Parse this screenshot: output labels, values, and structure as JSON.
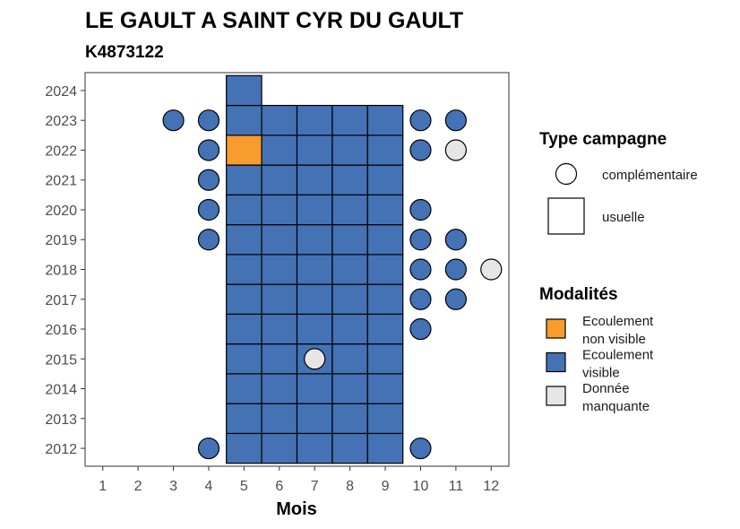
{
  "chart_data": {
    "type": "heatmap",
    "title": "LE GAULT A SAINT CYR DU GAULT",
    "subtitle": "K4873122",
    "xlabel": "Mois",
    "ylabel": "",
    "x_ticks": [
      "1",
      "2",
      "3",
      "4",
      "5",
      "6",
      "7",
      "8",
      "9",
      "10",
      "11",
      "12"
    ],
    "y_ticks": [
      "2012",
      "2013",
      "2014",
      "2015",
      "2016",
      "2017",
      "2018",
      "2019",
      "2020",
      "2021",
      "2022",
      "2023",
      "2024"
    ],
    "xlim": [
      0.5,
      12.5
    ],
    "ylim": [
      2011.4,
      2024.6
    ],
    "legend_type": {
      "title": "Type campagne",
      "items": [
        {
          "shape": "circle",
          "label": "complémentaire"
        },
        {
          "shape": "square",
          "label": "usuelle"
        }
      ]
    },
    "legend_modalites": {
      "title": "Modalités",
      "items": [
        {
          "key": "nv",
          "label_lines": [
            "Ecoulement",
            "non visible"
          ],
          "color": "#f89c2d"
        },
        {
          "key": "v",
          "label_lines": [
            "Ecoulement",
            "visible"
          ],
          "color": "#4472b5"
        },
        {
          "key": "m",
          "label_lines": [
            "Donnée",
            "manquante"
          ],
          "color": "#e6e6e6"
        }
      ]
    },
    "points": [
      {
        "month": 5,
        "year": 2012,
        "shape": "square",
        "mod": "v"
      },
      {
        "month": 6,
        "year": 2012,
        "shape": "square",
        "mod": "v"
      },
      {
        "month": 7,
        "year": 2012,
        "shape": "square",
        "mod": "v"
      },
      {
        "month": 8,
        "year": 2012,
        "shape": "square",
        "mod": "v"
      },
      {
        "month": 9,
        "year": 2012,
        "shape": "square",
        "mod": "v"
      },
      {
        "month": 5,
        "year": 2013,
        "shape": "square",
        "mod": "v"
      },
      {
        "month": 6,
        "year": 2013,
        "shape": "square",
        "mod": "v"
      },
      {
        "month": 7,
        "year": 2013,
        "shape": "square",
        "mod": "v"
      },
      {
        "month": 8,
        "year": 2013,
        "shape": "square",
        "mod": "v"
      },
      {
        "month": 9,
        "year": 2013,
        "shape": "square",
        "mod": "v"
      },
      {
        "month": 5,
        "year": 2014,
        "shape": "square",
        "mod": "v"
      },
      {
        "month": 6,
        "year": 2014,
        "shape": "square",
        "mod": "v"
      },
      {
        "month": 7,
        "year": 2014,
        "shape": "square",
        "mod": "v"
      },
      {
        "month": 8,
        "year": 2014,
        "shape": "square",
        "mod": "v"
      },
      {
        "month": 9,
        "year": 2014,
        "shape": "square",
        "mod": "v"
      },
      {
        "month": 5,
        "year": 2015,
        "shape": "square",
        "mod": "v"
      },
      {
        "month": 6,
        "year": 2015,
        "shape": "square",
        "mod": "v"
      },
      {
        "month": 7,
        "year": 2015,
        "shape": "square",
        "mod": "v"
      },
      {
        "month": 8,
        "year": 2015,
        "shape": "square",
        "mod": "v"
      },
      {
        "month": 9,
        "year": 2015,
        "shape": "square",
        "mod": "v"
      },
      {
        "month": 5,
        "year": 2016,
        "shape": "square",
        "mod": "v"
      },
      {
        "month": 6,
        "year": 2016,
        "shape": "square",
        "mod": "v"
      },
      {
        "month": 7,
        "year": 2016,
        "shape": "square",
        "mod": "v"
      },
      {
        "month": 8,
        "year": 2016,
        "shape": "square",
        "mod": "v"
      },
      {
        "month": 9,
        "year": 2016,
        "shape": "square",
        "mod": "v"
      },
      {
        "month": 5,
        "year": 2017,
        "shape": "square",
        "mod": "v"
      },
      {
        "month": 6,
        "year": 2017,
        "shape": "square",
        "mod": "v"
      },
      {
        "month": 7,
        "year": 2017,
        "shape": "square",
        "mod": "v"
      },
      {
        "month": 8,
        "year": 2017,
        "shape": "square",
        "mod": "v"
      },
      {
        "month": 9,
        "year": 2017,
        "shape": "square",
        "mod": "v"
      },
      {
        "month": 5,
        "year": 2018,
        "shape": "square",
        "mod": "v"
      },
      {
        "month": 6,
        "year": 2018,
        "shape": "square",
        "mod": "v"
      },
      {
        "month": 7,
        "year": 2018,
        "shape": "square",
        "mod": "v"
      },
      {
        "month": 8,
        "year": 2018,
        "shape": "square",
        "mod": "v"
      },
      {
        "month": 9,
        "year": 2018,
        "shape": "square",
        "mod": "v"
      },
      {
        "month": 5,
        "year": 2019,
        "shape": "square",
        "mod": "v"
      },
      {
        "month": 6,
        "year": 2019,
        "shape": "square",
        "mod": "v"
      },
      {
        "month": 7,
        "year": 2019,
        "shape": "square",
        "mod": "v"
      },
      {
        "month": 8,
        "year": 2019,
        "shape": "square",
        "mod": "v"
      },
      {
        "month": 9,
        "year": 2019,
        "shape": "square",
        "mod": "v"
      },
      {
        "month": 5,
        "year": 2020,
        "shape": "square",
        "mod": "v"
      },
      {
        "month": 6,
        "year": 2020,
        "shape": "square",
        "mod": "v"
      },
      {
        "month": 7,
        "year": 2020,
        "shape": "square",
        "mod": "v"
      },
      {
        "month": 8,
        "year": 2020,
        "shape": "square",
        "mod": "v"
      },
      {
        "month": 9,
        "year": 2020,
        "shape": "square",
        "mod": "v"
      },
      {
        "month": 5,
        "year": 2021,
        "shape": "square",
        "mod": "v"
      },
      {
        "month": 6,
        "year": 2021,
        "shape": "square",
        "mod": "v"
      },
      {
        "month": 7,
        "year": 2021,
        "shape": "square",
        "mod": "v"
      },
      {
        "month": 8,
        "year": 2021,
        "shape": "square",
        "mod": "v"
      },
      {
        "month": 9,
        "year": 2021,
        "shape": "square",
        "mod": "v"
      },
      {
        "month": 5,
        "year": 2022,
        "shape": "square",
        "mod": "nv"
      },
      {
        "month": 6,
        "year": 2022,
        "shape": "square",
        "mod": "v"
      },
      {
        "month": 7,
        "year": 2022,
        "shape": "square",
        "mod": "v"
      },
      {
        "month": 8,
        "year": 2022,
        "shape": "square",
        "mod": "v"
      },
      {
        "month": 9,
        "year": 2022,
        "shape": "square",
        "mod": "v"
      },
      {
        "month": 5,
        "year": 2023,
        "shape": "square",
        "mod": "v"
      },
      {
        "month": 6,
        "year": 2023,
        "shape": "square",
        "mod": "v"
      },
      {
        "month": 7,
        "year": 2023,
        "shape": "square",
        "mod": "v"
      },
      {
        "month": 8,
        "year": 2023,
        "shape": "square",
        "mod": "v"
      },
      {
        "month": 9,
        "year": 2023,
        "shape": "square",
        "mod": "v"
      },
      {
        "month": 5,
        "year": 2024,
        "shape": "square",
        "mod": "v"
      },
      {
        "month": 4,
        "year": 2012,
        "shape": "circle",
        "mod": "v"
      },
      {
        "month": 10,
        "year": 2012,
        "shape": "circle",
        "mod": "v"
      },
      {
        "month": 7,
        "year": 2015,
        "shape": "circle",
        "mod": "m"
      },
      {
        "month": 10,
        "year": 2016,
        "shape": "circle",
        "mod": "v"
      },
      {
        "month": 10,
        "year": 2017,
        "shape": "circle",
        "mod": "v"
      },
      {
        "month": 11,
        "year": 2017,
        "shape": "circle",
        "mod": "v"
      },
      {
        "month": 10,
        "year": 2018,
        "shape": "circle",
        "mod": "v"
      },
      {
        "month": 11,
        "year": 2018,
        "shape": "circle",
        "mod": "v"
      },
      {
        "month": 12,
        "year": 2018,
        "shape": "circle",
        "mod": "m"
      },
      {
        "month": 4,
        "year": 2019,
        "shape": "circle",
        "mod": "v"
      },
      {
        "month": 10,
        "year": 2019,
        "shape": "circle",
        "mod": "v"
      },
      {
        "month": 11,
        "year": 2019,
        "shape": "circle",
        "mod": "v"
      },
      {
        "month": 4,
        "year": 2020,
        "shape": "circle",
        "mod": "v"
      },
      {
        "month": 10,
        "year": 2020,
        "shape": "circle",
        "mod": "v"
      },
      {
        "month": 4,
        "year": 2021,
        "shape": "circle",
        "mod": "v"
      },
      {
        "month": 4,
        "year": 2022,
        "shape": "circle",
        "mod": "v"
      },
      {
        "month": 10,
        "year": 2022,
        "shape": "circle",
        "mod": "v"
      },
      {
        "month": 11,
        "year": 2022,
        "shape": "circle",
        "mod": "m"
      },
      {
        "month": 3,
        "year": 2023,
        "shape": "circle",
        "mod": "v"
      },
      {
        "month": 4,
        "year": 2023,
        "shape": "circle",
        "mod": "v"
      },
      {
        "month": 10,
        "year": 2023,
        "shape": "circle",
        "mod": "v"
      },
      {
        "month": 11,
        "year": 2023,
        "shape": "circle",
        "mod": "v"
      }
    ]
  }
}
